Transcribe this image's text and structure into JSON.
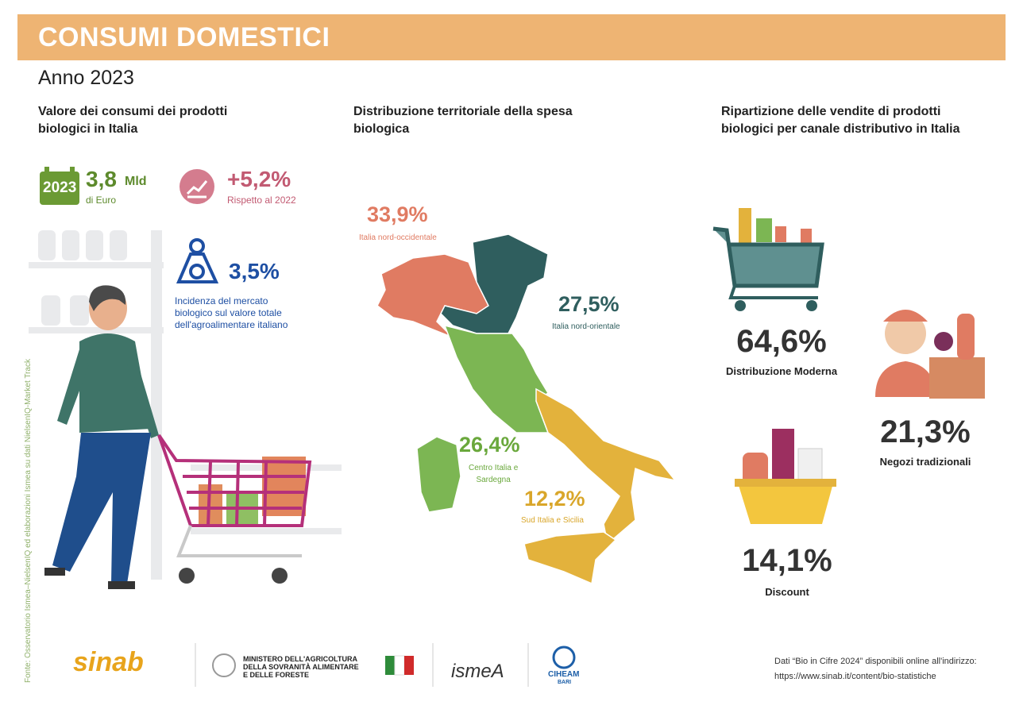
{
  "header": {
    "title": "CONSUMI DOMESTICI",
    "subtitle": "Anno 2023"
  },
  "consumption": {
    "title": [
      "Valore dei consumi dei prodotti",
      "biologici in Italia"
    ],
    "year_badge": "2023",
    "value": "3,8",
    "unit": "Mld",
    "value_note": "di Euro",
    "growth": "+5,2%",
    "growth_note": "Rispetto al 2022",
    "incidence": "3,5%",
    "incidence_note": [
      "Incidenza del mercato",
      "biologico sul valore totale",
      "dell'agroalimentare italiano"
    ]
  },
  "territory": {
    "title": [
      "Distribuzione territoriale della spesa",
      "biologica"
    ],
    "regions": [
      {
        "value": "33,9%",
        "label": [
          "Italia nord-occidentale"
        ]
      },
      {
        "value": "27,5%",
        "label": [
          "Italia nord-orientale"
        ]
      },
      {
        "value": "26,4%",
        "label": [
          "Centro Italia e",
          "Sardegna"
        ]
      },
      {
        "value": "12,2%",
        "label": [
          "Sud Italia e Sicilia"
        ]
      }
    ]
  },
  "channels": {
    "title": [
      "Ripartizione delle vendite di prodotti",
      "biologici per canale distributivo in Italia"
    ],
    "items": [
      {
        "value": "64,6%",
        "label": "Distribuzione Moderna"
      },
      {
        "value": "21,3%",
        "label": "Negozi tradizionali"
      },
      {
        "value": "14,1%",
        "label": "Discount"
      }
    ]
  },
  "source": "Fonte: Osservatorio Ismea–NielsenIQ ed elaborazioni Ismea su dati NielsenIQ-Market Track",
  "footer": {
    "logos": {
      "sinab": "sinab",
      "ministry": [
        "MINISTERO DELL'AGRICOLTURA",
        "DELLA SOVRANITÀ ALIMENTARE",
        "E DELLE FORESTE"
      ],
      "ismea": "ismeA",
      "ciheam": "CIHEAM",
      "ciheam_sub": "BARI"
    },
    "note": [
      "Dati “Bio in Cifre 2024” disponibili online all'indirizzo:",
      "https://www.sinab.it/content/bio-statistiche"
    ]
  }
}
